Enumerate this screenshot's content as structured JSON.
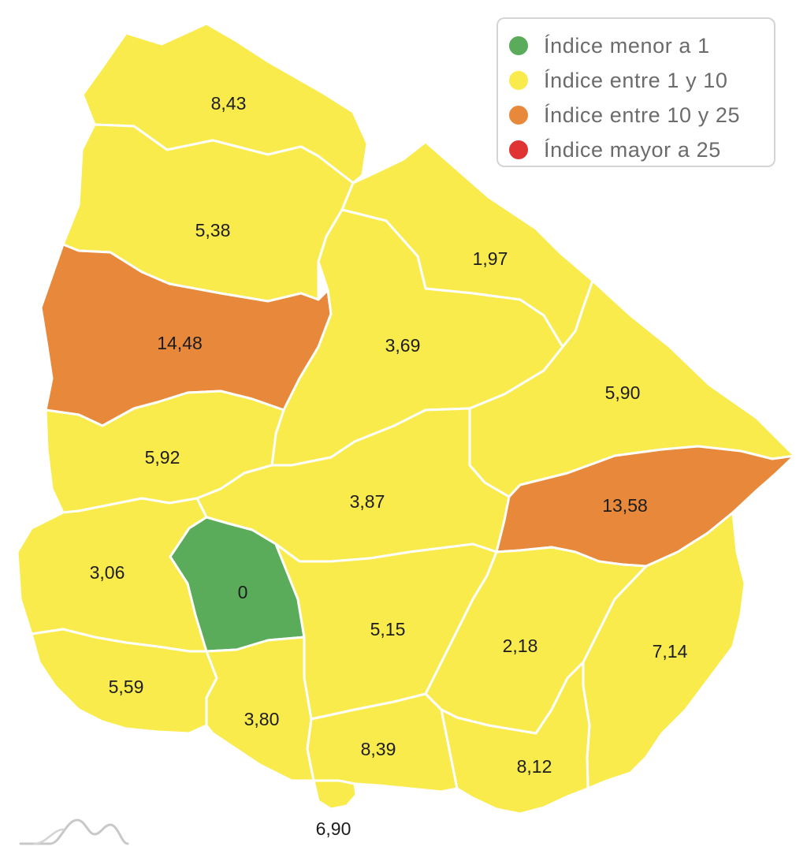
{
  "legend": {
    "items": [
      {
        "label": "Índice menor a 1",
        "color": "#5aab5a"
      },
      {
        "label": "Índice entre 1 y 10",
        "color": "#f9eb4c"
      },
      {
        "label": "Índice entre 10 y 25",
        "color": "#e8883a"
      },
      {
        "label": "Índice mayor a 25",
        "color": "#e03333"
      }
    ]
  },
  "departments": [
    {
      "id": "artigas",
      "value": "8,43",
      "category": "yellow"
    },
    {
      "id": "salto",
      "value": "5,38",
      "category": "yellow"
    },
    {
      "id": "rivera",
      "value": "1,97",
      "category": "yellow"
    },
    {
      "id": "paysandu",
      "value": "14,48",
      "category": "orange"
    },
    {
      "id": "tacuarembo",
      "value": "3,69",
      "category": "yellow"
    },
    {
      "id": "cerro-largo",
      "value": "5,90",
      "category": "yellow"
    },
    {
      "id": "rio-negro",
      "value": "5,92",
      "category": "yellow"
    },
    {
      "id": "durazno",
      "value": "3,87",
      "category": "yellow"
    },
    {
      "id": "treinta-y-tres",
      "value": "13,58",
      "category": "orange"
    },
    {
      "id": "soriano",
      "value": "3,06",
      "category": "yellow"
    },
    {
      "id": "flores",
      "value": "0",
      "category": "green"
    },
    {
      "id": "florida",
      "value": "5,15",
      "category": "yellow"
    },
    {
      "id": "lavalleja",
      "value": "2,18",
      "category": "yellow"
    },
    {
      "id": "rocha",
      "value": "7,14",
      "category": "yellow"
    },
    {
      "id": "colonia",
      "value": "5,59",
      "category": "yellow"
    },
    {
      "id": "san-jose",
      "value": "3,80",
      "category": "yellow"
    },
    {
      "id": "canelones",
      "value": "8,39",
      "category": "yellow"
    },
    {
      "id": "maldonado",
      "value": "8,12",
      "category": "yellow"
    },
    {
      "id": "montevideo",
      "value": "6,90",
      "category": "yellow"
    }
  ],
  "colors": {
    "yellow": "#f9eb4c",
    "orange": "#e8883a",
    "green": "#5aab5a",
    "red": "#e03333",
    "border": "#ffffff"
  },
  "logo": {
    "icon": "mountain-logo-icon"
  }
}
